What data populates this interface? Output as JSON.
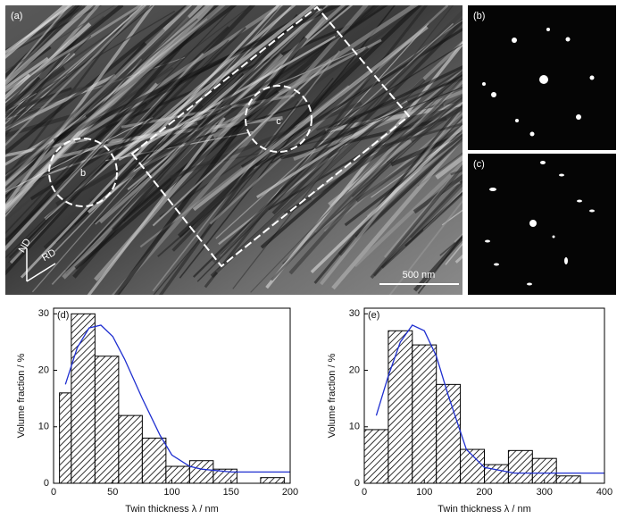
{
  "figure_panels": {
    "a": {
      "label": "(a)",
      "circle_b": "b",
      "circle_c": "c",
      "axis_nd": "ND",
      "axis_rd": "RD",
      "scale_bar": "500 nm"
    },
    "b": {
      "label": "(b)"
    },
    "c": {
      "label": "(c)"
    }
  },
  "chart_data": [
    {
      "type": "histogram",
      "panel_label": "(d)",
      "xlabel": "Twin thickness λ / nm",
      "ylabel": "Volume fraction / %",
      "bins": [
        5,
        15,
        35,
        55,
        75,
        95,
        115,
        135,
        155,
        175,
        195
      ],
      "counts": [
        16,
        30,
        22.5,
        12,
        8,
        3,
        4,
        2.5,
        0,
        1
      ],
      "color": "#000000",
      "fit": {
        "color": "#1f2fd0",
        "x": [
          10,
          20,
          30,
          40,
          50,
          60,
          75,
          90,
          100,
          115,
          125,
          150,
          175,
          200
        ],
        "values": [
          17.5,
          24,
          27.5,
          28,
          26,
          22,
          15,
          8.5,
          5,
          3,
          2.5,
          2,
          2,
          2
        ]
      },
      "xlim": [
        0,
        200
      ],
      "ylim": [
        0,
        31
      ],
      "xticks": [
        0,
        50,
        100,
        150,
        200
      ],
      "yticks": [
        0,
        10,
        20,
        30
      ]
    },
    {
      "type": "histogram",
      "panel_label": "(e)",
      "xlabel": "Twin thickness λ / nm",
      "ylabel": "Volume fraction / %",
      "bins": [
        0,
        40,
        80,
        120,
        160,
        200,
        240,
        280,
        320,
        360
      ],
      "counts": [
        9.5,
        27,
        24.5,
        17.5,
        6,
        3.3,
        5.8,
        4.4,
        1.3
      ],
      "color": "#000000",
      "fit": {
        "color": "#1f2fd0",
        "x": [
          20,
          40,
          60,
          80,
          100,
          120,
          140,
          170,
          200,
          250,
          300,
          400
        ],
        "values": [
          12,
          19,
          25,
          28,
          27,
          22.5,
          15.5,
          6,
          2.8,
          1.8,
          1.8,
          1.8
        ]
      },
      "xlim": [
        0,
        400
      ],
      "ylim": [
        0,
        31
      ],
      "xticks": [
        0,
        100,
        200,
        300,
        400
      ],
      "yticks": [
        0,
        10,
        20,
        30
      ]
    }
  ]
}
